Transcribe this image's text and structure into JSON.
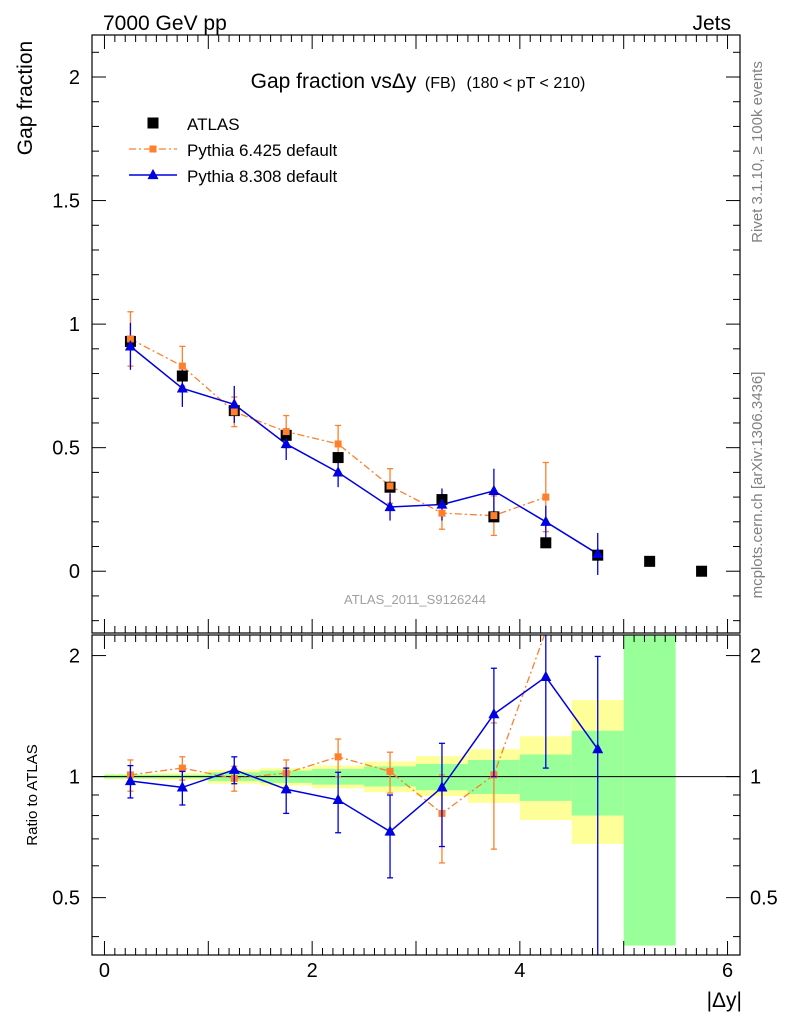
{
  "header": {
    "left": "7000 GeV pp",
    "right": "Jets"
  },
  "side": {
    "rivet": "Rivet 3.1.10, ≥ 100k events",
    "mcplots": "mcplots.cern.ch [arXiv:1306.3436]"
  },
  "chart_data": [
    {
      "type": "scatter",
      "title": "Gap fraction vsΔy",
      "title_small": "(FB)",
      "title_range": "(180 < pT < 210)",
      "watermark": "ATLAS_2011_S9126244",
      "xlabel": "|Δy|",
      "ylabel": "Gap fraction",
      "xlim": [
        -0.12,
        6.12
      ],
      "ylim": [
        -0.25,
        2.17
      ],
      "yticks": [
        0,
        0.5,
        1,
        1.5,
        2
      ],
      "yticklabels": [
        "0",
        "0.5",
        "1",
        "1.5",
        "2"
      ],
      "xticks": [
        0,
        2,
        4,
        6
      ],
      "xticklabels": [
        "0",
        "2",
        "4",
        "6"
      ],
      "legend_position": "top-left",
      "series": [
        {
          "name": "ATLAS",
          "style": "data",
          "color": "#000000",
          "x": [
            0.25,
            0.75,
            1.25,
            1.75,
            2.25,
            2.75,
            3.25,
            3.75,
            4.25,
            4.75,
            5.25,
            5.75
          ],
          "y": [
            0.93,
            0.79,
            0.65,
            0.55,
            0.46,
            0.34,
            0.29,
            0.22,
            0.115,
            0.065,
            0.04,
            0.0
          ]
        },
        {
          "name": "Pythia 6.425 default",
          "style": "mc-dashdot",
          "color": "#ff7f2a",
          "x": [
            0.25,
            0.75,
            1.25,
            1.75,
            2.25,
            2.75,
            3.25,
            3.75,
            4.25
          ],
          "y": [
            0.94,
            0.83,
            0.645,
            0.565,
            0.515,
            0.345,
            0.235,
            0.225,
            0.3
          ],
          "err": [
            0.11,
            0.08,
            0.06,
            0.065,
            0.075,
            0.07,
            0.065,
            0.08,
            0.14
          ]
        },
        {
          "name": "Pythia 8.308 default",
          "style": "mc-solid",
          "color": "#0000e0",
          "x": [
            0.25,
            0.75,
            1.25,
            1.75,
            2.25,
            2.75,
            3.25,
            3.75,
            4.25,
            4.75
          ],
          "y": [
            0.91,
            0.74,
            0.675,
            0.515,
            0.4,
            0.26,
            0.27,
            0.325,
            0.2,
            0.07
          ],
          "err": [
            0.095,
            0.075,
            0.075,
            0.065,
            0.06,
            0.055,
            0.065,
            0.09,
            0.065,
            0.085
          ]
        }
      ]
    },
    {
      "type": "scatter",
      "ylabel": "Ratio to ATLAS",
      "xlabel": "|Δy|",
      "xlim": [
        -0.12,
        6.12
      ],
      "ylim": [
        0.36,
        2.25
      ],
      "yticks": [
        0.5,
        1,
        2
      ],
      "yticklabels": [
        "0.5",
        "1",
        "2"
      ],
      "xticks": [
        0,
        2,
        4,
        6
      ],
      "xticklabels": [
        "0",
        "2",
        "4",
        "6"
      ],
      "bands": {
        "bin_edges": [
          0,
          0.5,
          1,
          1.5,
          2,
          2.5,
          3,
          3.5,
          4,
          4.5,
          5,
          5.5
        ],
        "inner_lo": [
          0.99,
          0.99,
          0.975,
          0.965,
          0.955,
          0.945,
          0.925,
          0.905,
          0.87,
          0.8,
          0.38
        ],
        "inner_hi": [
          1.01,
          1.01,
          1.025,
          1.035,
          1.045,
          1.06,
          1.075,
          1.1,
          1.135,
          1.3,
          2.25
        ],
        "outer_lo": [
          0.985,
          0.98,
          0.96,
          0.95,
          0.935,
          0.915,
          0.895,
          0.86,
          0.78,
          0.68,
          0.38
        ],
        "outer_hi": [
          1.015,
          1.02,
          1.04,
          1.05,
          1.065,
          1.09,
          1.125,
          1.17,
          1.26,
          1.55,
          2.25
        ],
        "inner_color": "#99ff99",
        "outer_color": "#ffff99"
      },
      "series": [
        {
          "name": "Pythia 6.425 default",
          "color": "#ff7f2a",
          "x": [
            0.25,
            0.75,
            1.25,
            1.75,
            2.25,
            2.75,
            3.25,
            3.75,
            4.25
          ],
          "y": [
            1.01,
            1.05,
            0.99,
            1.02,
            1.12,
            1.03,
            0.81,
            1.01,
            2.3
          ],
          "err": [
            0.09,
            0.07,
            0.07,
            0.08,
            0.12,
            0.12,
            0.2,
            0.35,
            0.0
          ]
        },
        {
          "name": "Pythia 8.308 default",
          "color": "#0000e0",
          "x": [
            0.25,
            0.75,
            1.25,
            1.75,
            2.25,
            2.75,
            3.25,
            3.75,
            4.25,
            4.75
          ],
          "y": [
            0.975,
            0.94,
            1.04,
            0.93,
            0.875,
            0.73,
            0.94,
            1.43,
            1.77,
            1.17
          ],
          "err": [
            0.09,
            0.09,
            0.08,
            0.12,
            0.15,
            0.17,
            0.27,
            0.43,
            0.72,
            0.82
          ]
        }
      ]
    }
  ]
}
